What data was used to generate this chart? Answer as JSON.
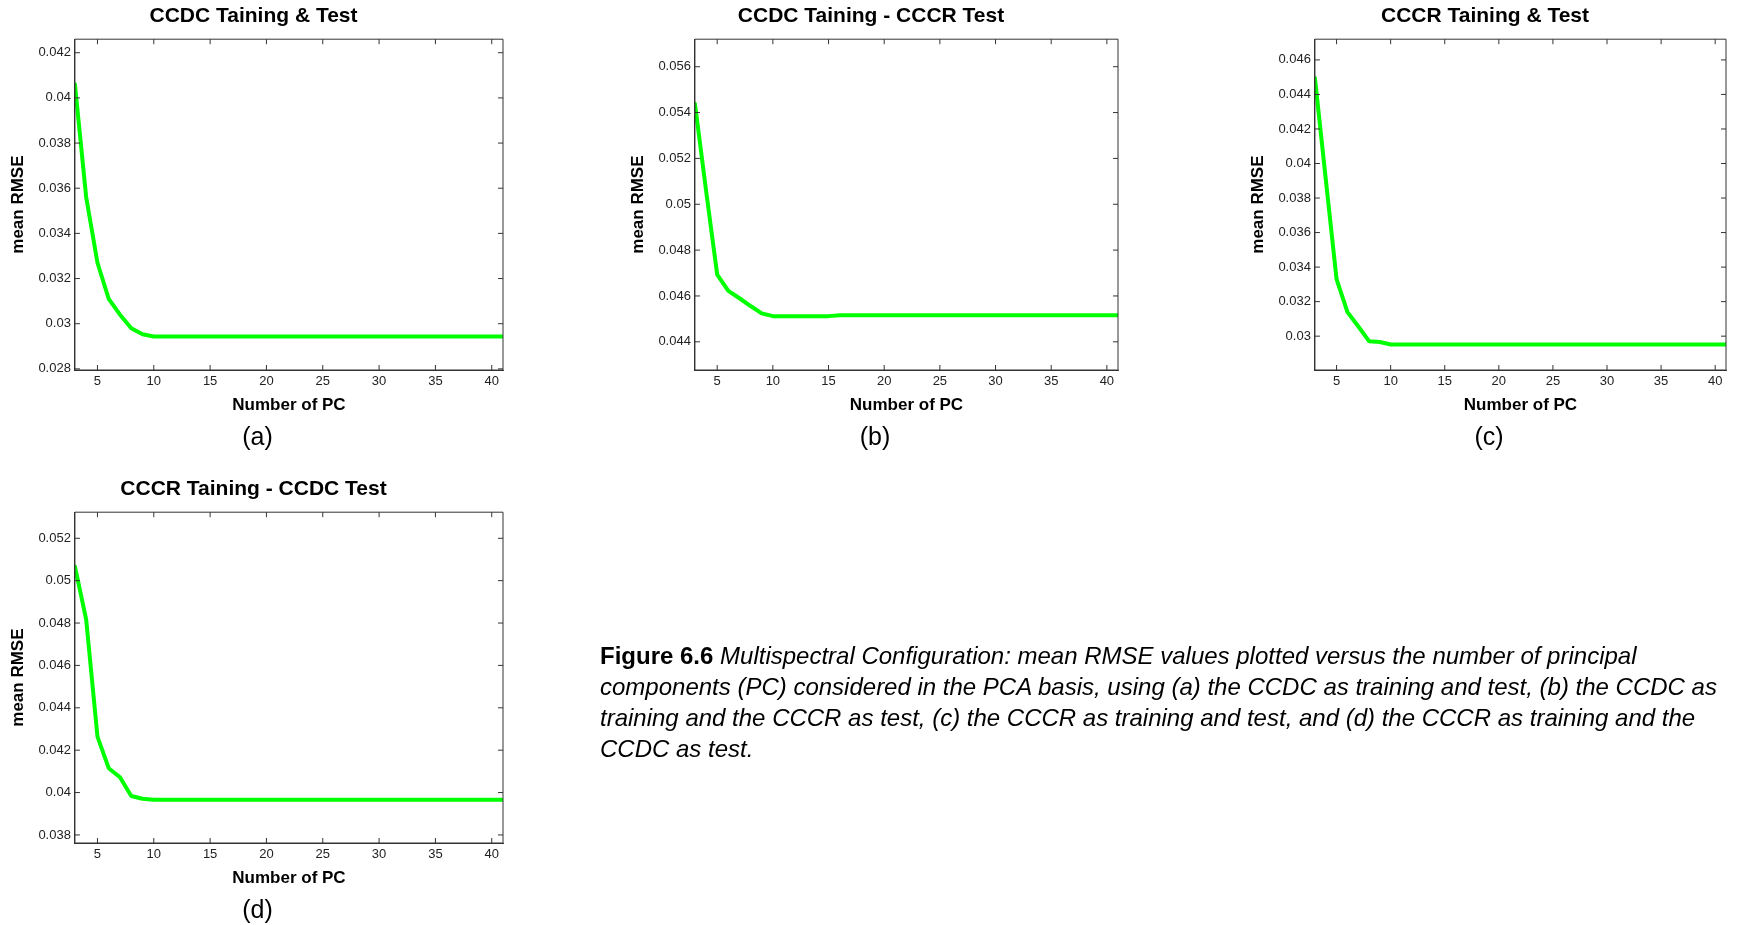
{
  "chart_data": [
    {
      "type": "line",
      "title": "CCDC Taining & Test",
      "xlabel": "Number of PC",
      "ylabel": "mean RMSE",
      "annotations": [
        "(a)"
      ],
      "marker": "none",
      "line_style": "solid",
      "x": [
        3,
        4,
        5,
        6,
        7,
        8,
        9,
        10,
        41
      ],
      "series": [
        {
          "color": "#00ff00",
          "values": [
            0.0406,
            0.0356,
            0.0327,
            0.0311,
            0.0304,
            0.0298,
            0.02953,
            0.02943,
            0.02943
          ]
        }
      ],
      "xlim": [
        3,
        41
      ],
      "xticks": [
        5,
        10,
        15,
        20,
        25,
        30,
        35,
        40
      ],
      "ylim": [
        0.02795,
        0.0426
      ],
      "yticks": [
        0.028,
        0.03,
        0.032,
        0.034,
        0.036,
        0.038,
        0.04,
        0.042
      ]
    },
    {
      "type": "line",
      "title": "CCDC Taining - CCCR Test",
      "xlabel": "Number of PC",
      "ylabel": "mean RMSE",
      "annotations": [
        "(b)"
      ],
      "marker": "none",
      "line_style": "solid",
      "x": [
        3,
        4,
        5,
        6,
        7,
        8,
        9,
        10,
        15,
        16,
        41
      ],
      "series": [
        {
          "color": "#00ff00",
          "values": [
            0.05438,
            0.0506,
            0.04693,
            0.04622,
            0.0459,
            0.04556,
            0.04524,
            0.04512,
            0.04512,
            0.04516,
            0.04516
          ]
        }
      ],
      "xlim": [
        3,
        41
      ],
      "xticks": [
        5,
        10,
        15,
        20,
        25,
        30,
        35,
        40
      ],
      "ylim": [
        0.04277,
        0.0572
      ],
      "yticks": [
        0.044,
        0.046,
        0.048,
        0.05,
        0.052,
        0.054,
        0.056
      ]
    },
    {
      "type": "line",
      "title": "CCCR Taining & Test",
      "xlabel": "Number of PC",
      "ylabel": "mean RMSE",
      "annotations": [
        "(c)"
      ],
      "marker": "none",
      "line_style": "solid",
      "x": [
        3,
        4,
        5,
        6,
        7,
        8,
        9,
        10,
        41
      ],
      "series": [
        {
          "color": "#00ff00",
          "values": [
            0.04495,
            0.0391,
            0.0333,
            0.0314,
            0.03057,
            0.02971,
            0.02966,
            0.02952,
            0.02952
          ]
        }
      ],
      "xlim": [
        3,
        41
      ],
      "xticks": [
        5,
        10,
        15,
        20,
        25,
        30,
        35,
        40
      ],
      "ylim": [
        0.02804,
        0.0472
      ],
      "yticks": [
        0.03,
        0.032,
        0.034,
        0.036,
        0.038,
        0.04,
        0.042,
        0.044,
        0.046
      ]
    },
    {
      "type": "line",
      "title": "CCCR Taining - CCDC Test",
      "xlabel": "Number of PC",
      "ylabel": "mean RMSE",
      "annotations": [
        "(d)"
      ],
      "marker": "none",
      "line_style": "solid",
      "x": [
        3,
        4,
        5,
        6,
        7,
        8,
        9,
        10,
        41
      ],
      "series": [
        {
          "color": "#00ff00",
          "values": [
            0.05067,
            0.04816,
            0.04264,
            0.04115,
            0.04072,
            0.03984,
            0.03971,
            0.03966,
            0.03966
          ]
        }
      ],
      "xlim": [
        3,
        41
      ],
      "xticks": [
        5,
        10,
        15,
        20,
        25,
        30,
        35,
        40
      ],
      "ylim": [
        0.03762,
        0.05323
      ],
      "yticks": [
        0.038,
        0.04,
        0.042,
        0.044,
        0.046,
        0.048,
        0.05,
        0.052
      ]
    },
    {
      "type": "other",
      "annotations": [
        "Figure 6.6",
        "Multispectral Configuration: mean RMSE values plotted versus the number of principal components (PC) considered in the PCA basis, using (a) the CCDC as training and test, (b) the CCDC as training and the CCCR as test, (c) the CCCR as training and test, and (d) the CCCR as training and the CCDC as test."
      ]
    }
  ]
}
